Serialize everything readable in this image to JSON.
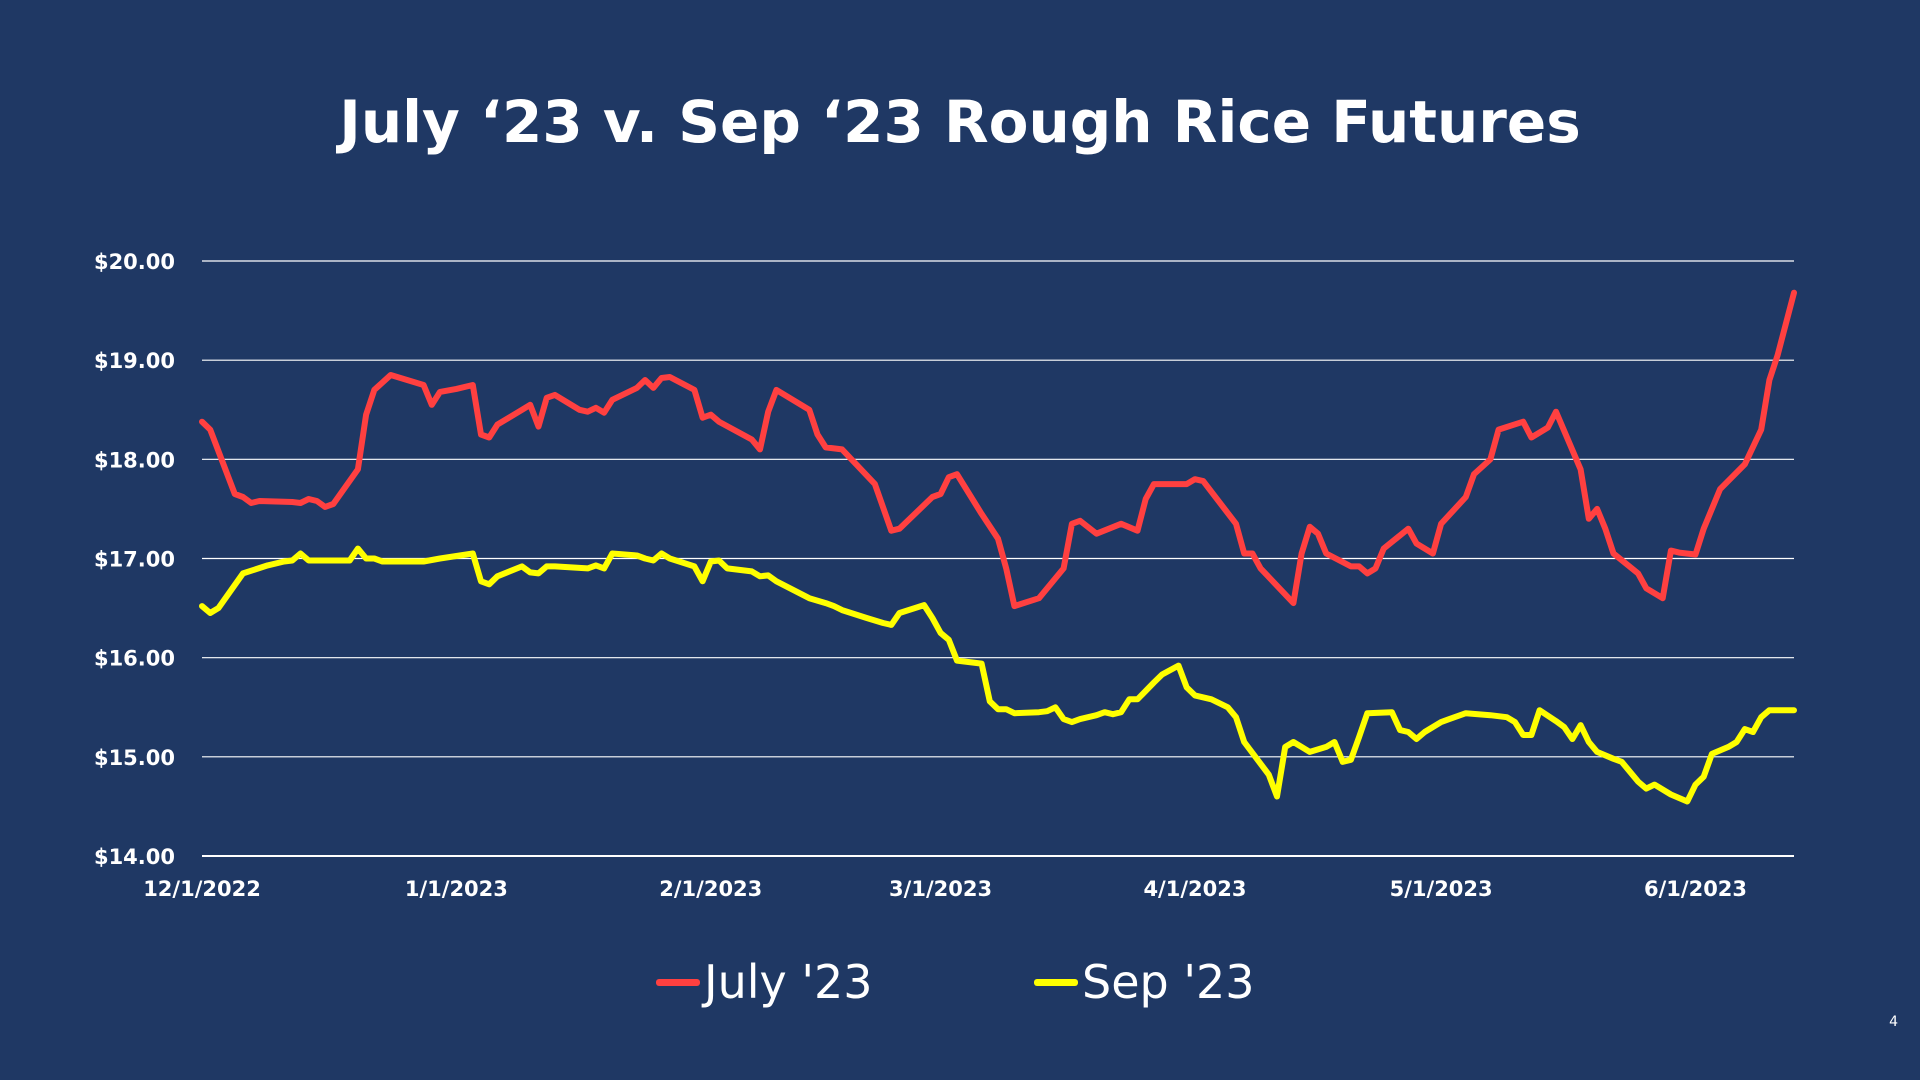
{
  "slide": {
    "title": "July ‘23 v. Sep ‘23 Rough Rice Futures",
    "page_number": "4"
  },
  "legend": {
    "july_label": "July '23",
    "sep_label": "Sep '23"
  },
  "colors": {
    "background": "#1f3864",
    "july": "#ff4040",
    "sep": "#ffff00",
    "grid": "#ffffff",
    "text": "#ffffff"
  },
  "chart_data": {
    "type": "line",
    "title": "July ‘23 v. Sep ‘23 Rough Rice Futures",
    "xlabel": "",
    "ylabel": "",
    "ylim": [
      14,
      20
    ],
    "xlim": [
      "2022-12-01",
      "2023-06-13"
    ],
    "yticks": [
      {
        "value": 20,
        "label": "$20.00"
      },
      {
        "value": 19,
        "label": "$19.00"
      },
      {
        "value": 18,
        "label": "$18.00"
      },
      {
        "value": 17,
        "label": "$17.00"
      },
      {
        "value": 16,
        "label": "$16.00"
      },
      {
        "value": 15,
        "label": "$15.00"
      },
      {
        "value": 14,
        "label": "$14.00"
      }
    ],
    "xticks": [
      {
        "date": "2022-12-01",
        "label": "12/1/2022"
      },
      {
        "date": "2023-01-01",
        "label": "1/1/2023"
      },
      {
        "date": "2023-02-01",
        "label": "2/1/2023"
      },
      {
        "date": "2023-03-01",
        "label": "3/1/2023"
      },
      {
        "date": "2023-04-01",
        "label": "4/1/2023"
      },
      {
        "date": "2023-05-01",
        "label": "5/1/2023"
      },
      {
        "date": "2023-06-01",
        "label": "6/1/2023"
      }
    ],
    "grid": "horizontal",
    "legend_position": "bottom",
    "series": [
      {
        "name": "July '23",
        "color": "#ff4040",
        "points": [
          [
            "2022-12-01",
            18.38
          ],
          [
            "2022-12-02",
            18.3
          ],
          [
            "2022-12-05",
            17.65
          ],
          [
            "2022-12-06",
            17.62
          ],
          [
            "2022-12-07",
            17.56
          ],
          [
            "2022-12-08",
            17.58
          ],
          [
            "2022-12-12",
            17.57
          ],
          [
            "2022-12-13",
            17.56
          ],
          [
            "2022-12-14",
            17.6
          ],
          [
            "2022-12-15",
            17.58
          ],
          [
            "2022-12-16",
            17.52
          ],
          [
            "2022-12-17",
            17.55
          ],
          [
            "2022-12-20",
            17.9
          ],
          [
            "2022-12-21",
            18.45
          ],
          [
            "2022-12-22",
            18.7
          ],
          [
            "2022-12-24",
            18.85
          ],
          [
            "2022-12-28",
            18.75
          ],
          [
            "2022-12-29",
            18.55
          ],
          [
            "2022-12-30",
            18.68
          ],
          [
            "2023-01-01",
            18.71
          ],
          [
            "2023-01-03",
            18.75
          ],
          [
            "2023-01-04",
            18.25
          ],
          [
            "2023-01-05",
            18.22
          ],
          [
            "2023-01-06",
            18.35
          ],
          [
            "2023-01-09",
            18.5
          ],
          [
            "2023-01-10",
            18.55
          ],
          [
            "2023-01-11",
            18.33
          ],
          [
            "2023-01-12",
            18.62
          ],
          [
            "2023-01-13",
            18.65
          ],
          [
            "2023-01-16",
            18.5
          ],
          [
            "2023-01-17",
            18.48
          ],
          [
            "2023-01-18",
            18.52
          ],
          [
            "2023-01-19",
            18.47
          ],
          [
            "2023-01-20",
            18.6
          ],
          [
            "2023-01-23",
            18.72
          ],
          [
            "2023-01-24",
            18.8
          ],
          [
            "2023-01-25",
            18.72
          ],
          [
            "2023-01-26",
            18.82
          ],
          [
            "2023-01-27",
            18.83
          ],
          [
            "2023-01-30",
            18.7
          ],
          [
            "2023-01-31",
            18.42
          ],
          [
            "2023-02-01",
            18.45
          ],
          [
            "2023-02-02",
            18.38
          ],
          [
            "2023-02-06",
            18.2
          ],
          [
            "2023-02-07",
            18.1
          ],
          [
            "2023-02-08",
            18.48
          ],
          [
            "2023-02-09",
            18.7
          ],
          [
            "2023-02-13",
            18.5
          ],
          [
            "2023-02-14",
            18.25
          ],
          [
            "2023-02-15",
            18.12
          ],
          [
            "2023-02-17",
            18.1
          ],
          [
            "2023-02-21",
            17.75
          ],
          [
            "2023-02-23",
            17.28
          ],
          [
            "2023-02-24",
            17.3
          ],
          [
            "2023-02-28",
            17.62
          ],
          [
            "2023-03-01",
            17.65
          ],
          [
            "2023-03-02",
            17.82
          ],
          [
            "2023-03-03",
            17.85
          ],
          [
            "2023-03-06",
            17.45
          ],
          [
            "2023-03-08",
            17.2
          ],
          [
            "2023-03-09",
            16.9
          ],
          [
            "2023-03-10",
            16.52
          ],
          [
            "2023-03-13",
            16.6
          ],
          [
            "2023-03-16",
            16.9
          ],
          [
            "2023-03-17",
            17.35
          ],
          [
            "2023-03-18",
            17.38
          ],
          [
            "2023-03-20",
            17.25
          ],
          [
            "2023-03-23",
            17.35
          ],
          [
            "2023-03-25",
            17.28
          ],
          [
            "2023-03-26",
            17.6
          ],
          [
            "2023-03-27",
            17.75
          ],
          [
            "2023-03-31",
            17.75
          ],
          [
            "2023-04-01",
            17.8
          ],
          [
            "2023-04-02",
            17.78
          ],
          [
            "2023-04-06",
            17.35
          ],
          [
            "2023-04-07",
            17.05
          ],
          [
            "2023-04-08",
            17.05
          ],
          [
            "2023-04-09",
            16.9
          ],
          [
            "2023-04-13",
            16.55
          ],
          [
            "2023-04-14",
            17.05
          ],
          [
            "2023-04-15",
            17.32
          ],
          [
            "2023-04-16",
            17.25
          ],
          [
            "2023-04-17",
            17.05
          ],
          [
            "2023-04-20",
            16.92
          ],
          [
            "2023-04-21",
            16.92
          ],
          [
            "2023-04-22",
            16.85
          ],
          [
            "2023-04-23",
            16.9
          ],
          [
            "2023-04-24",
            17.1
          ],
          [
            "2023-04-27",
            17.3
          ],
          [
            "2023-04-28",
            17.15
          ],
          [
            "2023-04-30",
            17.05
          ],
          [
            "2023-05-01",
            17.35
          ],
          [
            "2023-05-04",
            17.62
          ],
          [
            "2023-05-05",
            17.85
          ],
          [
            "2023-05-07",
            18.0
          ],
          [
            "2023-05-08",
            18.3
          ],
          [
            "2023-05-11",
            18.38
          ],
          [
            "2023-05-12",
            18.22
          ],
          [
            "2023-05-14",
            18.32
          ],
          [
            "2023-05-15",
            18.48
          ],
          [
            "2023-05-18",
            17.9
          ],
          [
            "2023-05-19",
            17.4
          ],
          [
            "2023-05-20",
            17.5
          ],
          [
            "2023-05-21",
            17.3
          ],
          [
            "2023-05-22",
            17.05
          ],
          [
            "2023-05-25",
            16.85
          ],
          [
            "2023-05-26",
            16.7
          ],
          [
            "2023-05-28",
            16.6
          ],
          [
            "2023-05-29",
            17.08
          ],
          [
            "2023-05-30",
            17.06
          ],
          [
            "2023-06-01",
            17.04
          ],
          [
            "2023-06-02",
            17.3
          ],
          [
            "2023-06-04",
            17.7
          ],
          [
            "2023-06-07",
            17.95
          ],
          [
            "2023-06-09",
            18.3
          ],
          [
            "2023-06-10",
            18.8
          ],
          [
            "2023-06-11",
            19.05
          ],
          [
            "2023-06-13",
            19.68
          ]
        ]
      },
      {
        "name": "Sep '23",
        "color": "#ffff00",
        "points": [
          [
            "2022-12-01",
            16.52
          ],
          [
            "2022-12-02",
            16.45
          ],
          [
            "2022-12-03",
            16.5
          ],
          [
            "2022-12-06",
            16.85
          ],
          [
            "2022-12-09",
            16.93
          ],
          [
            "2022-12-11",
            16.97
          ],
          [
            "2022-12-12",
            16.98
          ],
          [
            "2022-12-13",
            17.05
          ],
          [
            "2022-12-14",
            16.98
          ],
          [
            "2022-12-19",
            16.98
          ],
          [
            "2022-12-20",
            17.1
          ],
          [
            "2022-12-21",
            17.0
          ],
          [
            "2022-12-22",
            17.0
          ],
          [
            "2022-12-23",
            16.97
          ],
          [
            "2022-12-27",
            16.97
          ],
          [
            "2022-12-28",
            16.97
          ],
          [
            "2022-12-30",
            17.0
          ],
          [
            "2023-01-03",
            17.05
          ],
          [
            "2023-01-04",
            16.77
          ],
          [
            "2023-01-05",
            16.74
          ],
          [
            "2023-01-06",
            16.82
          ],
          [
            "2023-01-09",
            16.92
          ],
          [
            "2023-01-10",
            16.86
          ],
          [
            "2023-01-11",
            16.85
          ],
          [
            "2023-01-12",
            16.92
          ],
          [
            "2023-01-13",
            16.92
          ],
          [
            "2023-01-17",
            16.9
          ],
          [
            "2023-01-18",
            16.93
          ],
          [
            "2023-01-19",
            16.9
          ],
          [
            "2023-01-20",
            17.05
          ],
          [
            "2023-01-23",
            17.03
          ],
          [
            "2023-01-24",
            17.0
          ],
          [
            "2023-01-25",
            16.98
          ],
          [
            "2023-01-26",
            17.05
          ],
          [
            "2023-01-27",
            17.0
          ],
          [
            "2023-01-30",
            16.92
          ],
          [
            "2023-01-31",
            16.77
          ],
          [
            "2023-02-01",
            16.97
          ],
          [
            "2023-02-02",
            16.98
          ],
          [
            "2023-02-03",
            16.9
          ],
          [
            "2023-02-06",
            16.87
          ],
          [
            "2023-02-07",
            16.82
          ],
          [
            "2023-02-08",
            16.83
          ],
          [
            "2023-02-09",
            16.77
          ],
          [
            "2023-02-13",
            16.6
          ],
          [
            "2023-02-15",
            16.55
          ],
          [
            "2023-02-16",
            16.52
          ],
          [
            "2023-02-17",
            16.48
          ],
          [
            "2023-02-20",
            16.4
          ],
          [
            "2023-02-22",
            16.35
          ],
          [
            "2023-02-23",
            16.33
          ],
          [
            "2023-02-24",
            16.45
          ],
          [
            "2023-02-27",
            16.53
          ],
          [
            "2023-02-28",
            16.4
          ],
          [
            "2023-03-01",
            16.25
          ],
          [
            "2023-03-02",
            16.18
          ],
          [
            "2023-03-03",
            15.97
          ],
          [
            "2023-03-06",
            15.94
          ],
          [
            "2023-03-07",
            15.56
          ],
          [
            "2023-03-08",
            15.48
          ],
          [
            "2023-03-09",
            15.48
          ],
          [
            "2023-03-10",
            15.44
          ],
          [
            "2023-03-13",
            15.45
          ],
          [
            "2023-03-14",
            15.46
          ],
          [
            "2023-03-15",
            15.5
          ],
          [
            "2023-03-16",
            15.38
          ],
          [
            "2023-03-17",
            15.35
          ],
          [
            "2023-03-18",
            15.38
          ],
          [
            "2023-03-20",
            15.42
          ],
          [
            "2023-03-21",
            15.45
          ],
          [
            "2023-03-22",
            15.43
          ],
          [
            "2023-03-23",
            15.45
          ],
          [
            "2023-03-24",
            15.58
          ],
          [
            "2023-03-25",
            15.58
          ],
          [
            "2023-03-27",
            15.75
          ],
          [
            "2023-03-28",
            15.83
          ],
          [
            "2023-03-30",
            15.92
          ],
          [
            "2023-03-31",
            15.7
          ],
          [
            "2023-04-01",
            15.62
          ],
          [
            "2023-04-03",
            15.58
          ],
          [
            "2023-04-05",
            15.5
          ],
          [
            "2023-04-06",
            15.4
          ],
          [
            "2023-04-07",
            15.15
          ],
          [
            "2023-04-10",
            14.82
          ],
          [
            "2023-04-11",
            14.6
          ],
          [
            "2023-04-12",
            15.1
          ],
          [
            "2023-04-13",
            15.15
          ],
          [
            "2023-04-14",
            15.1
          ],
          [
            "2023-04-15",
            15.05
          ],
          [
            "2023-04-17",
            15.1
          ],
          [
            "2023-04-18",
            15.15
          ],
          [
            "2023-04-19",
            14.95
          ],
          [
            "2023-04-20",
            14.97
          ],
          [
            "2023-04-21",
            15.2
          ],
          [
            "2023-04-22",
            15.44
          ],
          [
            "2023-04-25",
            15.45
          ],
          [
            "2023-04-26",
            15.27
          ],
          [
            "2023-04-27",
            15.25
          ],
          [
            "2023-04-28",
            15.18
          ],
          [
            "2023-04-29",
            15.25
          ],
          [
            "2023-05-01",
            15.35
          ],
          [
            "2023-05-02",
            15.38
          ],
          [
            "2023-05-04",
            15.44
          ],
          [
            "2023-05-07",
            15.42
          ],
          [
            "2023-05-09",
            15.4
          ],
          [
            "2023-05-10",
            15.35
          ],
          [
            "2023-05-11",
            15.22
          ],
          [
            "2023-05-12",
            15.22
          ],
          [
            "2023-05-13",
            15.47
          ],
          [
            "2023-05-15",
            15.36
          ],
          [
            "2023-05-16",
            15.3
          ],
          [
            "2023-05-17",
            15.18
          ],
          [
            "2023-05-18",
            15.32
          ],
          [
            "2023-05-19",
            15.15
          ],
          [
            "2023-05-20",
            15.05
          ],
          [
            "2023-05-22",
            14.98
          ],
          [
            "2023-05-23",
            14.95
          ],
          [
            "2023-05-24",
            14.85
          ],
          [
            "2023-05-25",
            14.75
          ],
          [
            "2023-05-26",
            14.68
          ],
          [
            "2023-05-27",
            14.72
          ],
          [
            "2023-05-29",
            14.62
          ],
          [
            "2023-05-31",
            14.55
          ],
          [
            "2023-06-01",
            14.72
          ],
          [
            "2023-06-02",
            14.8
          ],
          [
            "2023-06-03",
            15.03
          ],
          [
            "2023-06-05",
            15.1
          ],
          [
            "2023-06-06",
            15.15
          ],
          [
            "2023-06-07",
            15.28
          ],
          [
            "2023-06-08",
            15.25
          ],
          [
            "2023-06-09",
            15.4
          ],
          [
            "2023-06-10",
            15.47
          ],
          [
            "2023-06-13",
            15.47
          ]
        ]
      }
    ]
  }
}
